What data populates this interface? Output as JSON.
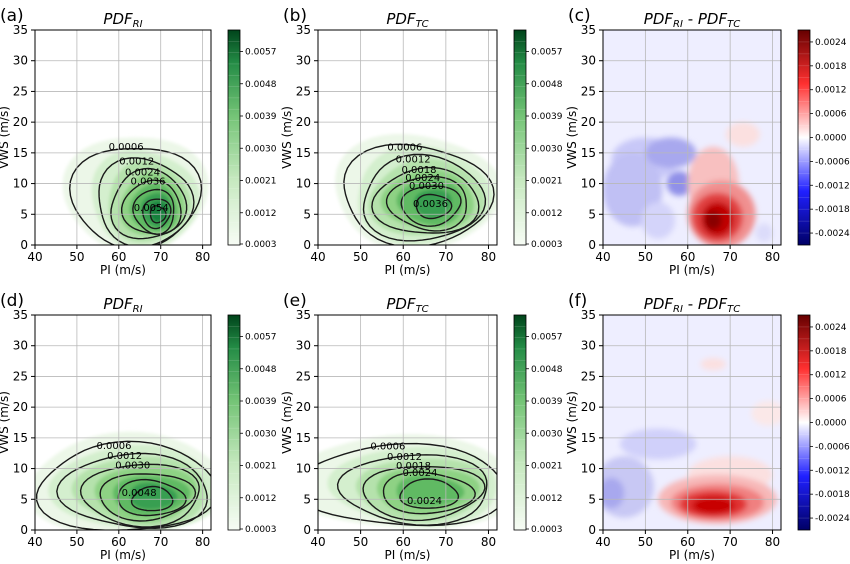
{
  "chart_data": [
    {
      "type": "contour",
      "panel_label": "(a)",
      "title_main": "PDF",
      "title_sub": "RI",
      "xlabel": "PI (m/s)",
      "ylabel": "VWS (m/s)",
      "xlim": [
        40,
        82
      ],
      "ylim": [
        0,
        35
      ],
      "xticks": [
        "40",
        "50",
        "60",
        "70",
        "80"
      ],
      "yticks": [
        "0",
        "5",
        "10",
        "15",
        "20",
        "25",
        "30",
        "35"
      ],
      "grid": true,
      "colormap": "Greens",
      "colorbar_ticks": [
        "0.0003",
        "0.0012",
        "0.0021",
        "0.0030",
        "0.0039",
        "0.0048",
        "0.0057"
      ],
      "contour_labels": [
        "0.0006",
        "0.0012",
        "0.0024",
        "0.0036",
        "0.0054"
      ]
    },
    {
      "type": "contour",
      "panel_label": "(b)",
      "title_main": "PDF",
      "title_sub": "TC",
      "xlabel": "PI (m/s)",
      "ylabel": "VWS (m/s)",
      "xlim": [
        40,
        82
      ],
      "ylim": [
        0,
        35
      ],
      "xticks": [
        "40",
        "50",
        "60",
        "70",
        "80"
      ],
      "yticks": [
        "0",
        "5",
        "10",
        "15",
        "20",
        "25",
        "30",
        "35"
      ],
      "grid": true,
      "colormap": "Greens",
      "colorbar_ticks": [
        "0.0003",
        "0.0012",
        "0.0021",
        "0.0030",
        "0.0039",
        "0.0048",
        "0.0057"
      ],
      "contour_labels": [
        "0.0006",
        "0.0012",
        "0.0018",
        "0.0024",
        "0.0030",
        "0.0036"
      ]
    },
    {
      "type": "contour",
      "panel_label": "(c)",
      "title_main": "PDF",
      "title_sub": "RI",
      "title_main2": "PDF",
      "title_sub2": "TC",
      "xlabel": "PI (m/s)",
      "ylabel": "VWS (m/s)",
      "xlim": [
        40,
        82
      ],
      "ylim": [
        0,
        35
      ],
      "xticks": [
        "40",
        "50",
        "60",
        "70",
        "80"
      ],
      "yticks": [
        "0",
        "5",
        "10",
        "15",
        "20",
        "25",
        "30",
        "35"
      ],
      "grid": true,
      "colormap": "seismic",
      "colorbar_ticks": [
        "0.0024",
        "0.0018",
        "0.0012",
        "0.0006",
        "0.0000",
        "-0.0006",
        "-0.0012",
        "-0.0018",
        "-0.0024"
      ],
      "contour_labels": []
    },
    {
      "type": "contour",
      "panel_label": "(d)",
      "title_main": "PDF",
      "title_sub": "RI",
      "xlabel": "PI (m/s)",
      "ylabel": "VWS (m/s)",
      "xlim": [
        40,
        82
      ],
      "ylim": [
        0,
        35
      ],
      "xticks": [
        "40",
        "50",
        "60",
        "70",
        "80"
      ],
      "yticks": [
        "0",
        "5",
        "10",
        "15",
        "20",
        "25",
        "30",
        "35"
      ],
      "grid": true,
      "colormap": "Greens",
      "colorbar_ticks": [
        "0.0003",
        "0.0012",
        "0.0021",
        "0.0030",
        "0.0039",
        "0.0048",
        "0.0057"
      ],
      "contour_labels": [
        "0.0006",
        "0.0012",
        "0.0030",
        "0.0048"
      ]
    },
    {
      "type": "contour",
      "panel_label": "(e)",
      "title_main": "PDF",
      "title_sub": "TC",
      "xlabel": "PI (m/s)",
      "ylabel": "VWS (m/s)",
      "xlim": [
        40,
        82
      ],
      "ylim": [
        0,
        35
      ],
      "xticks": [
        "40",
        "50",
        "60",
        "70",
        "80"
      ],
      "yticks": [
        "0",
        "5",
        "10",
        "15",
        "20",
        "25",
        "30",
        "35"
      ],
      "grid": true,
      "colormap": "Greens",
      "colorbar_ticks": [
        "0.0003",
        "0.0012",
        "0.0021",
        "0.0030",
        "0.0039",
        "0.0048",
        "0.0057"
      ],
      "contour_labels": [
        "0.0006",
        "0.0012",
        "0.0018",
        "0.0024",
        "0.0024"
      ]
    },
    {
      "type": "contour",
      "panel_label": "(f)",
      "title_main": "PDF",
      "title_sub": "RI",
      "title_main2": "PDF",
      "title_sub2": "TC",
      "xlabel": "PI (m/s)",
      "ylabel": "VWS (m/s)",
      "xlim": [
        40,
        82
      ],
      "ylim": [
        0,
        35
      ],
      "xticks": [
        "40",
        "50",
        "60",
        "70",
        "80"
      ],
      "yticks": [
        "0",
        "5",
        "10",
        "15",
        "20",
        "25",
        "30",
        "35"
      ],
      "grid": true,
      "colormap": "seismic",
      "colorbar_ticks": [
        "0.0024",
        "0.0018",
        "0.0012",
        "0.0006",
        "0.0000",
        "-0.0006",
        "-0.0012",
        "-0.0018",
        "-0.0024"
      ],
      "contour_labels": []
    }
  ]
}
